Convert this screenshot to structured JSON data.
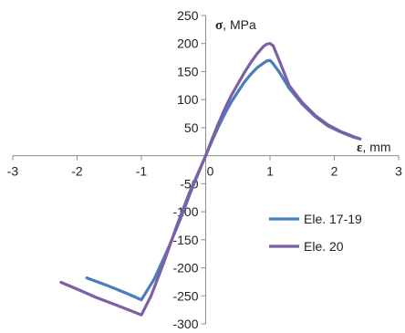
{
  "chart_data": {
    "type": "line",
    "title": "",
    "xlabel_symbol": "ε",
    "xlabel_unit": ", mm",
    "ylabel_symbol": "σ",
    "ylabel_unit": ", MPa",
    "xlim": [
      -3,
      3
    ],
    "ylim": [
      -300,
      250
    ],
    "x_ticks": [
      -3,
      -2,
      -1,
      0,
      1,
      2,
      3
    ],
    "y_ticks": [
      -300,
      -250,
      -200,
      -150,
      -100,
      -50,
      0,
      50,
      100,
      150,
      200,
      250
    ],
    "x_tick_labels": [
      "-3",
      "-2",
      "-1",
      "0",
      "1",
      "2",
      "3"
    ],
    "y_tick_labels": [
      "-300",
      "-250",
      "-200",
      "-150",
      "-100",
      "-50",
      "0",
      "50",
      "100",
      "150",
      "200",
      "250"
    ],
    "grid": false,
    "legend_position": "right",
    "series": [
      {
        "name": "Ele. 17-19",
        "color": "#4a7ebb",
        "points": [
          [
            -1.85,
            -218
          ],
          [
            -1.5,
            -233
          ],
          [
            -1.2,
            -247
          ],
          [
            -1.0,
            -257
          ],
          [
            -0.8,
            -220
          ],
          [
            -0.6,
            -170
          ],
          [
            -0.4,
            -115
          ],
          [
            -0.2,
            -55
          ],
          [
            0.0,
            0
          ],
          [
            0.1,
            27
          ],
          [
            0.2,
            52
          ],
          [
            0.3,
            75
          ],
          [
            0.4,
            96
          ],
          [
            0.5,
            114
          ],
          [
            0.6,
            131
          ],
          [
            0.7,
            145
          ],
          [
            0.8,
            157
          ],
          [
            0.9,
            165
          ],
          [
            0.95,
            169
          ],
          [
            1.0,
            170
          ],
          [
            1.05,
            164
          ],
          [
            1.15,
            148
          ],
          [
            1.3,
            120
          ],
          [
            1.5,
            92
          ],
          [
            1.7,
            70
          ],
          [
            1.9,
            53
          ],
          [
            2.1,
            42
          ],
          [
            2.3,
            33
          ],
          [
            2.4,
            30
          ]
        ]
      },
      {
        "name": "Ele. 20",
        "color": "#7d5fa6",
        "points": [
          [
            -2.25,
            -226
          ],
          [
            -2.0,
            -238
          ],
          [
            -1.7,
            -253
          ],
          [
            -1.4,
            -266
          ],
          [
            -1.2,
            -275
          ],
          [
            -1.0,
            -284
          ],
          [
            -0.85,
            -250
          ],
          [
            -0.65,
            -190
          ],
          [
            -0.45,
            -125
          ],
          [
            -0.25,
            -65
          ],
          [
            0.0,
            0
          ],
          [
            0.1,
            30
          ],
          [
            0.2,
            58
          ],
          [
            0.3,
            84
          ],
          [
            0.4,
            108
          ],
          [
            0.5,
            128
          ],
          [
            0.6,
            148
          ],
          [
            0.7,
            166
          ],
          [
            0.8,
            182
          ],
          [
            0.9,
            195
          ],
          [
            0.95,
            199
          ],
          [
            1.0,
            200
          ],
          [
            1.05,
            196
          ],
          [
            1.15,
            168
          ],
          [
            1.3,
            125
          ],
          [
            1.5,
            95
          ],
          [
            1.7,
            72
          ],
          [
            1.9,
            55
          ],
          [
            2.1,
            43
          ],
          [
            2.3,
            34
          ],
          [
            2.4,
            30
          ]
        ]
      }
    ]
  }
}
